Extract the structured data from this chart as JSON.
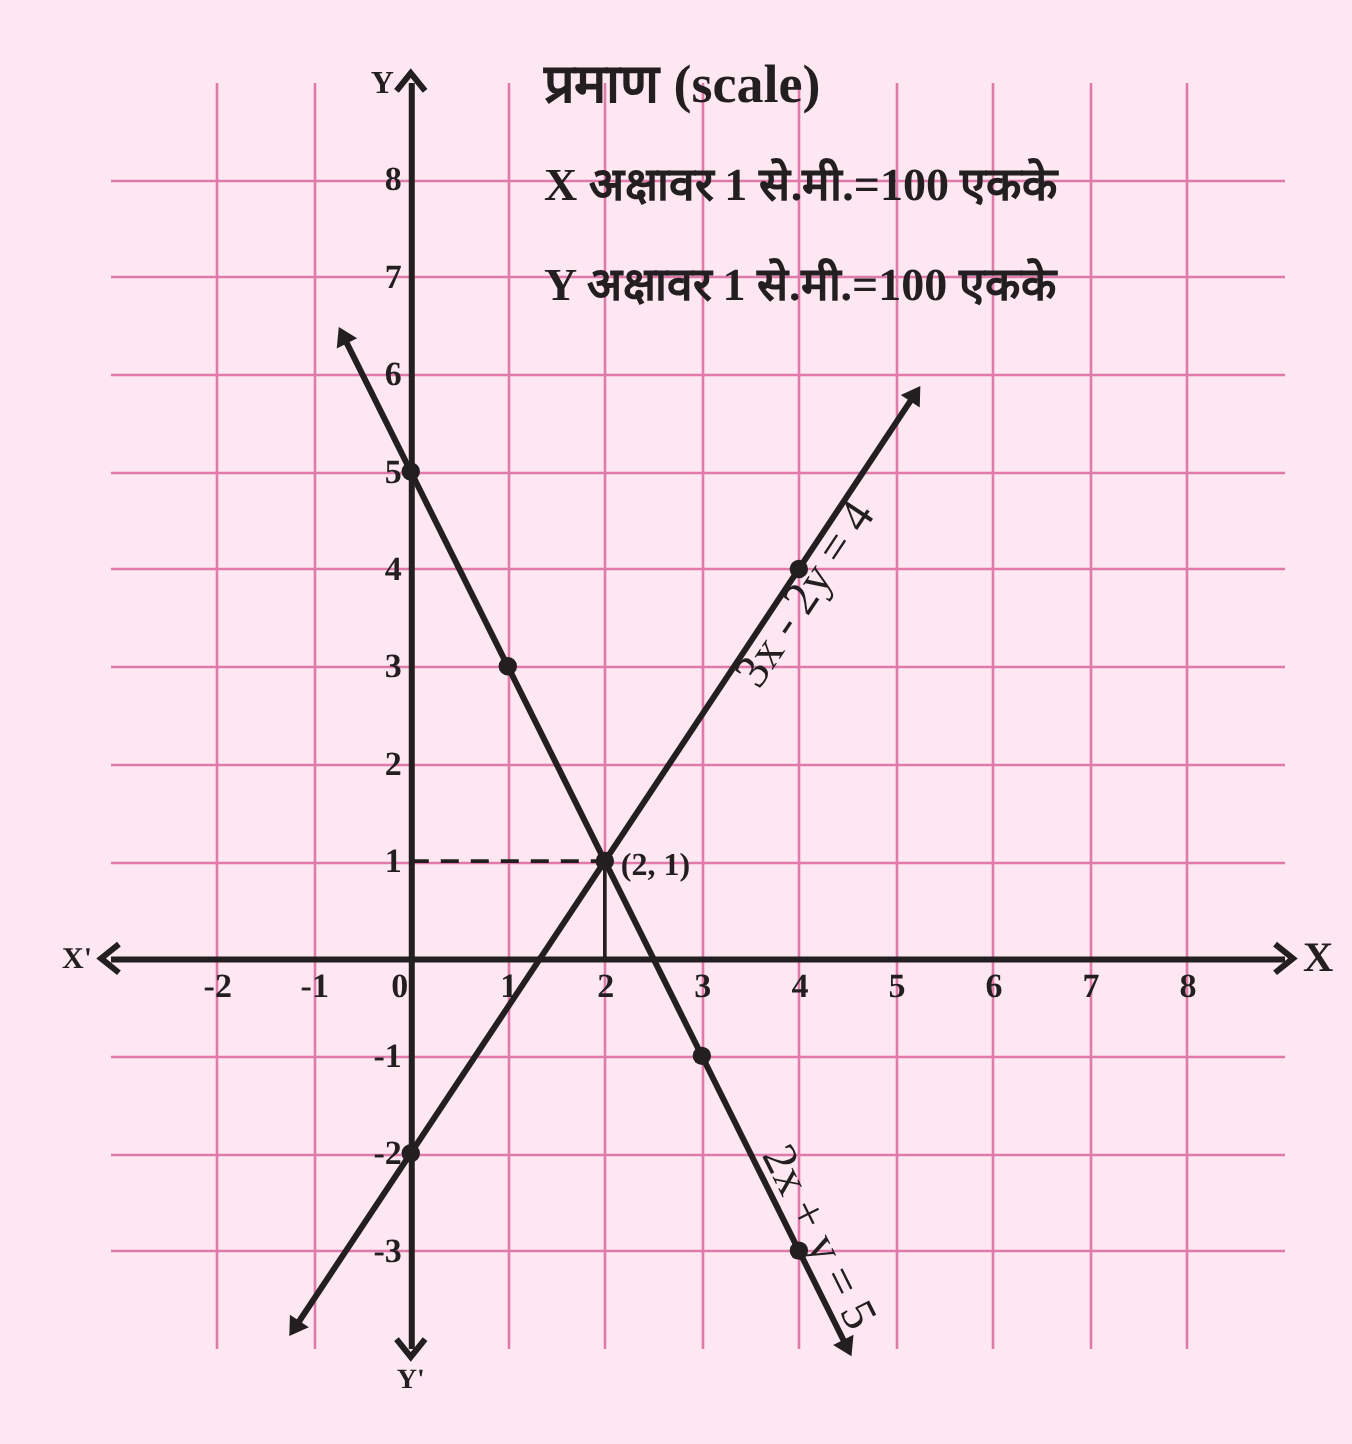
{
  "chart_data": {
    "type": "line",
    "series": [
      {
        "name": "2x + y = 5",
        "color": "#231f20",
        "marker": "triangle",
        "x": [
          -0.7,
          4.5
        ],
        "values": [
          6.4,
          -4.0
        ]
      },
      {
        "name": "3x - 2y = 4",
        "color": "#231f20",
        "marker": "triangle",
        "x": [
          -1.2,
          5.2
        ],
        "values": [
          -3.8,
          5.8
        ]
      },
      {
        "type": "scatter",
        "marker": "circle",
        "color": "#231f20",
        "x": [
          0,
          1,
          2,
          3,
          4,
          0,
          4
        ],
        "values": [
          5,
          3,
          1,
          -1,
          -3,
          -2,
          4
        ]
      },
      {
        "color": "#231f20",
        "line_style": "dashed",
        "x": [
          0,
          2
        ],
        "values": [
          1,
          1
        ]
      },
      {
        "color": "#231f20",
        "x": [
          2,
          2
        ],
        "values": [
          1,
          0
        ]
      }
    ],
    "xlabel": "X",
    "ylabel": "Y",
    "annotations": [
      "प्रमाण (scale)",
      "X अक्षावर 1 से.मी.=100 एकके",
      "Y अक्षावर 1 से.मी.=100 एकके",
      "X'",
      "Y'",
      {
        "text": "(2, 1)",
        "x": 2,
        "y": 1
      }
    ],
    "xlim": [
      -3.1,
      9.0
    ],
    "ylim": [
      -4.0,
      9.0
    ],
    "xticks": [
      -2,
      -1,
      0,
      1,
      2,
      3,
      4,
      5,
      6,
      7,
      8
    ],
    "yticks": [
      -3,
      -2,
      -1,
      1,
      2,
      3,
      4,
      5,
      6,
      7,
      8
    ],
    "grid": true,
    "line_style": "solid"
  }
}
